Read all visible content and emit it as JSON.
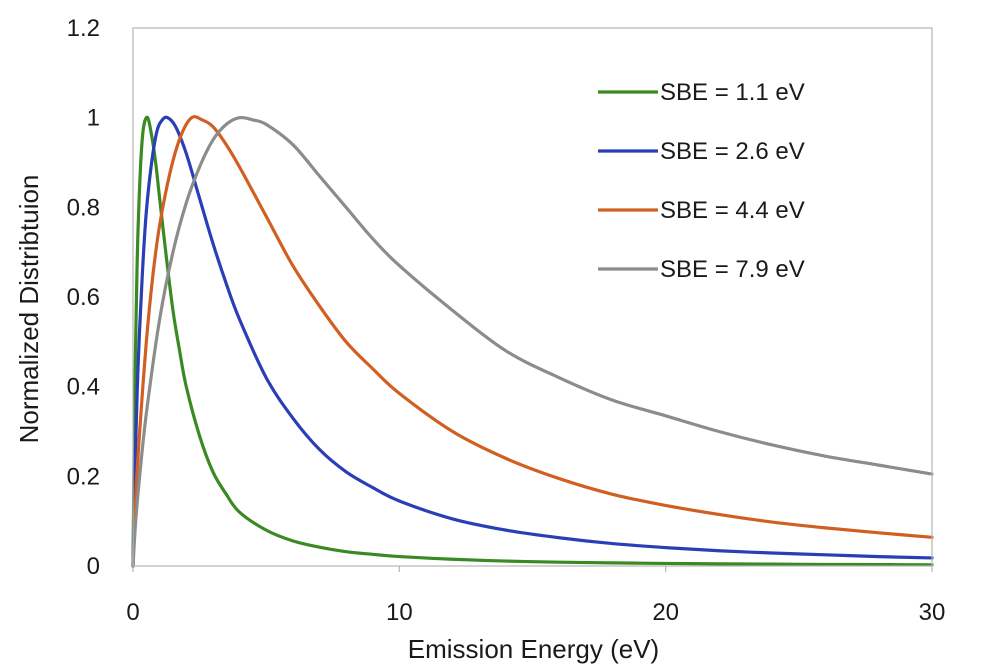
{
  "chart_data": {
    "type": "line",
    "title": "",
    "xlabel": "Emission Energy (eV)",
    "ylabel": "Normalized Distribtuion",
    "xlim": [
      0,
      30
    ],
    "ylim": [
      0,
      1.2
    ],
    "x_ticks": [
      0,
      10,
      20,
      30
    ],
    "x_tick_labels": [
      "0",
      "10",
      "20",
      "30"
    ],
    "y_ticks": [
      0,
      0.2,
      0.4,
      0.6,
      0.8,
      1,
      1.2
    ],
    "y_tick_labels": [
      "0",
      "0.2",
      "0.4",
      "0.6",
      "0.8",
      "1",
      "1.2"
    ],
    "grid": false,
    "legend_position": "top-right",
    "series": [
      {
        "name": "SBE = 1.1 eV",
        "color": "#3a8a23",
        "x": [
          0,
          0.05,
          0.1,
          0.15,
          0.2,
          0.3,
          0.4,
          0.55,
          0.7,
          0.85,
          1.0,
          1.25,
          1.5,
          1.75,
          2.0,
          2.5,
          3,
          3.5,
          4,
          5,
          6,
          7,
          8,
          9,
          10,
          12,
          14,
          16,
          18,
          20,
          22,
          24,
          26,
          28,
          30
        ],
        "values": [
          0,
          0.31,
          0.5,
          0.66,
          0.77,
          0.91,
          0.98,
          1.0,
          0.96,
          0.9,
          0.82,
          0.69,
          0.57,
          0.48,
          0.4,
          0.29,
          0.21,
          0.16,
          0.12,
          0.08,
          0.056,
          0.042,
          0.032,
          0.026,
          0.021,
          0.015,
          0.011,
          0.0085,
          0.007,
          0.0057,
          0.0048,
          0.0041,
          0.0035,
          0.0031,
          0.0027
        ]
      },
      {
        "name": "SBE = 2.6 eV",
        "color": "#2a3fb5",
        "x": [
          0,
          0.1,
          0.2,
          0.35,
          0.5,
          0.7,
          0.9,
          1.1,
          1.3,
          1.6,
          2.0,
          2.5,
          3,
          3.5,
          4,
          5,
          6,
          7,
          8,
          9,
          10,
          12,
          14,
          16,
          18,
          20,
          22,
          24,
          26,
          28,
          30
        ],
        "values": [
          0,
          0.27,
          0.46,
          0.65,
          0.79,
          0.9,
          0.97,
          0.995,
          1.0,
          0.98,
          0.92,
          0.82,
          0.72,
          0.63,
          0.55,
          0.42,
          0.33,
          0.26,
          0.21,
          0.175,
          0.145,
          0.105,
          0.08,
          0.063,
          0.05,
          0.041,
          0.034,
          0.029,
          0.025,
          0.021,
          0.018
        ]
      },
      {
        "name": "SBE = 4.4 eV",
        "color": "#d25f22",
        "x": [
          0,
          0.1,
          0.25,
          0.5,
          0.75,
          1.0,
          1.4,
          1.8,
          2.2,
          2.6,
          3.0,
          3.5,
          4,
          5,
          6,
          7,
          8,
          9,
          10,
          12,
          14,
          16,
          18,
          20,
          22,
          24,
          26,
          28,
          30
        ],
        "values": [
          0,
          0.15,
          0.3,
          0.5,
          0.65,
          0.76,
          0.88,
          0.96,
          1.0,
          0.995,
          0.98,
          0.94,
          0.89,
          0.78,
          0.67,
          0.58,
          0.5,
          0.44,
          0.385,
          0.3,
          0.24,
          0.195,
          0.16,
          0.135,
          0.115,
          0.098,
          0.085,
          0.074,
          0.064
        ]
      },
      {
        "name": "SBE = 7.9 eV",
        "color": "#8c8c8c",
        "x": [
          0,
          0.1,
          0.25,
          0.5,
          1.0,
          1.5,
          2.0,
          2.5,
          3.0,
          3.5,
          4.0,
          4.5,
          5.0,
          6.0,
          7.0,
          8.0,
          9,
          10,
          12,
          14,
          16,
          18,
          20,
          22,
          24,
          26,
          28,
          30
        ],
        "values": [
          0,
          0.1,
          0.2,
          0.34,
          0.55,
          0.7,
          0.81,
          0.89,
          0.95,
          0.985,
          1.0,
          0.995,
          0.985,
          0.94,
          0.87,
          0.8,
          0.73,
          0.67,
          0.57,
          0.48,
          0.42,
          0.37,
          0.335,
          0.3,
          0.27,
          0.245,
          0.225,
          0.205
        ]
      }
    ]
  }
}
